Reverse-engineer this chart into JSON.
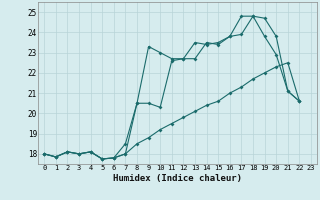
{
  "title": "",
  "xlabel": "Humidex (Indice chaleur)",
  "bg_color": "#d6ecee",
  "grid_color": "#b8d4d8",
  "line_color": "#1a6b6b",
  "xlim": [
    -0.5,
    23.5
  ],
  "ylim": [
    17.5,
    25.5
  ],
  "xticks": [
    0,
    1,
    2,
    3,
    4,
    5,
    6,
    7,
    8,
    9,
    10,
    11,
    12,
    13,
    14,
    15,
    16,
    17,
    18,
    19,
    20,
    21,
    22,
    23
  ],
  "yticks": [
    18,
    19,
    20,
    21,
    22,
    23,
    24,
    25
  ],
  "line1_x": [
    0,
    1,
    2,
    3,
    4,
    5,
    6,
    7,
    8,
    9,
    10,
    11,
    12,
    13,
    14,
    15,
    16,
    17,
    18,
    19,
    20,
    21,
    22
  ],
  "line1_y": [
    18.0,
    17.85,
    18.1,
    18.0,
    18.1,
    17.75,
    17.8,
    18.5,
    20.5,
    23.3,
    23.0,
    22.7,
    22.7,
    22.7,
    23.5,
    23.4,
    23.8,
    24.8,
    24.8,
    23.8,
    22.9,
    21.1,
    20.6
  ],
  "line2_x": [
    0,
    1,
    2,
    3,
    4,
    5,
    6,
    7,
    8,
    9,
    10,
    11,
    12,
    13,
    14,
    15,
    16,
    17,
    18,
    19,
    20,
    21,
    22
  ],
  "line2_y": [
    18.0,
    17.85,
    18.1,
    18.0,
    18.1,
    17.75,
    17.8,
    18.0,
    20.5,
    20.5,
    20.3,
    22.6,
    22.7,
    23.5,
    23.4,
    23.5,
    23.8,
    23.9,
    24.8,
    24.7,
    23.8,
    21.1,
    20.6
  ],
  "line3_x": [
    0,
    1,
    2,
    3,
    4,
    5,
    6,
    7,
    8,
    9,
    10,
    11,
    12,
    13,
    14,
    15,
    16,
    17,
    18,
    19,
    20,
    21,
    22
  ],
  "line3_y": [
    18.0,
    17.85,
    18.1,
    18.0,
    18.1,
    17.75,
    17.8,
    18.0,
    18.5,
    18.8,
    19.2,
    19.5,
    19.8,
    20.1,
    20.4,
    20.6,
    21.0,
    21.3,
    21.7,
    22.0,
    22.3,
    22.5,
    20.6
  ]
}
